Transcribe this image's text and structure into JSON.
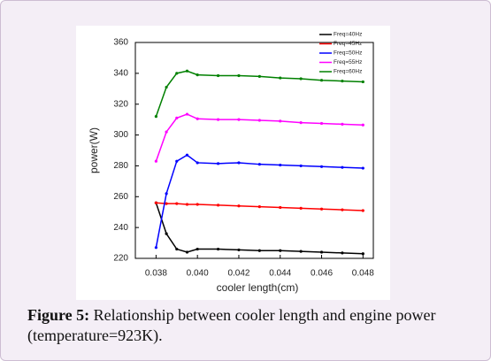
{
  "chart_data": {
    "type": "line",
    "x_label": "cooler length(cm)",
    "y_label": "power(W)",
    "x": [
      0.038,
      0.0385,
      0.039,
      0.0395,
      0.04,
      0.041,
      0.042,
      0.043,
      0.044,
      0.045,
      0.046,
      0.047,
      0.048
    ],
    "series": [
      {
        "name": "Freq=40Hz",
        "color": "#000000",
        "values": [
          256,
          236,
          226,
          224,
          226,
          226,
          225.5,
          225,
          225,
          224.5,
          224,
          223.5,
          223
        ]
      },
      {
        "name": "Freq=45Hz",
        "color": "#ff0000",
        "values": [
          256,
          255.5,
          255.5,
          255,
          255,
          254.5,
          254,
          253.5,
          253,
          252.5,
          252,
          251.5,
          251
        ]
      },
      {
        "name": "Freq=50Hz",
        "color": "#0000ff",
        "values": [
          227,
          262,
          283,
          287,
          282,
          281.5,
          282,
          281,
          280.5,
          280,
          279.5,
          279,
          278.5
        ]
      },
      {
        "name": "Freq=55Hz",
        "color": "#ff00ff",
        "values": [
          283,
          302,
          311,
          313.5,
          310.5,
          310,
          310,
          309.5,
          309,
          308,
          307.5,
          307,
          306.5
        ]
      },
      {
        "name": "Freq=60Hz",
        "color": "#008000",
        "values": [
          312,
          331,
          340,
          341.5,
          339,
          338.5,
          338.5,
          338,
          337,
          336.5,
          335.5,
          335,
          334.5
        ]
      }
    ],
    "xlim": [
      0.037,
      0.0485
    ],
    "xticks": [
      0.038,
      {
        "value": 0.04,
        "label": "0.040"
      },
      0.042,
      0.044,
      0.046,
      0.048
    ],
    "ylim": [
      220,
      360
    ],
    "yticks": [
      220,
      240,
      260,
      280,
      300,
      320,
      340,
      360
    ],
    "grid": false,
    "legend": "top-right"
  },
  "caption": {
    "label": "Figure 5:",
    "text": "Relationship between cooler length and engine power (temperature=923K)."
  }
}
